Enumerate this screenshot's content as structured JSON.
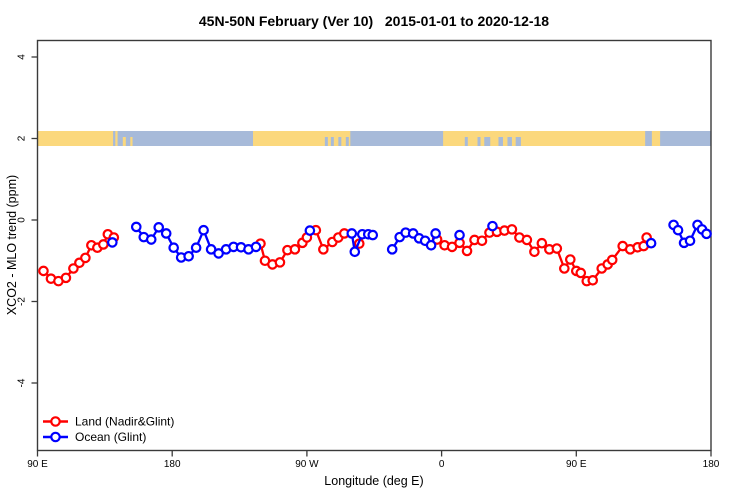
{
  "title": "45N-50N February (Ver 10)   2015-01-01 to 2020-12-18",
  "chart_data": {
    "type": "line",
    "title": "45N-50N February (Ver 10)   2015-01-01 to 2020-12-18",
    "xlabel": "Longitude (deg E)",
    "ylabel": "XCO2 - MLO trend (ppm)",
    "xlim": [
      90,
      540
    ],
    "ylim": [
      -5.6,
      4.4
    ],
    "grid": false,
    "legend_position": "bottom-left",
    "marker": "open-circle",
    "x_ticks": [
      {
        "value": 90,
        "label": "90 E"
      },
      {
        "value": 180,
        "label": "180"
      },
      {
        "value": 270,
        "label": "90 W"
      },
      {
        "value": 360,
        "label": "0"
      },
      {
        "value": 450,
        "label": "90 E"
      },
      {
        "value": 540,
        "label": "180"
      }
    ],
    "y_ticks": [
      {
        "value": -4,
        "label": "-4"
      },
      {
        "value": -2,
        "label": "-2"
      },
      {
        "value": 0,
        "label": "0"
      },
      {
        "value": 2,
        "label": "2"
      },
      {
        "value": 4,
        "label": "4"
      }
    ],
    "series": [
      {
        "name": "Land (Nadir&Glint)",
        "color": "#FF0000",
        "chains": [
          [
            [
              94,
              -1.25
            ],
            [
              99,
              -1.44
            ],
            [
              104,
              -1.5
            ],
            [
              109,
              -1.42
            ],
            [
              114,
              -1.19
            ],
            [
              118,
              -1.05
            ],
            [
              122,
              -0.93
            ],
            [
              126,
              -0.62
            ],
            [
              130,
              -0.68
            ],
            [
              134,
              -0.6
            ],
            [
              137,
              -0.35
            ],
            [
              141,
              -0.43
            ]
          ],
          [
            [
              239,
              -0.58
            ],
            [
              242,
              -1.0
            ],
            [
              247,
              -1.09
            ],
            [
              252,
              -1.04
            ],
            [
              257,
              -0.74
            ],
            [
              262,
              -0.72
            ],
            [
              267,
              -0.56
            ],
            [
              270,
              -0.43
            ],
            [
              276,
              -0.25
            ],
            [
              281,
              -0.72
            ],
            [
              287,
              -0.54
            ],
            [
              291,
              -0.43
            ],
            [
              295,
              -0.33
            ]
          ],
          [
            [
              305,
              -0.58
            ]
          ],
          [
            [
              357,
              -0.48
            ],
            [
              362,
              -0.62
            ],
            [
              367,
              -0.66
            ],
            [
              372,
              -0.56
            ],
            [
              377,
              -0.76
            ],
            [
              382,
              -0.49
            ],
            [
              387,
              -0.51
            ],
            [
              392,
              -0.31
            ],
            [
              397,
              -0.29
            ],
            [
              402,
              -0.26
            ],
            [
              407,
              -0.23
            ],
            [
              412,
              -0.43
            ],
            [
              417,
              -0.49
            ],
            [
              422,
              -0.78
            ],
            [
              427,
              -0.57
            ],
            [
              432,
              -0.72
            ],
            [
              437,
              -0.7
            ],
            [
              442,
              -1.19
            ],
            [
              446,
              -0.97
            ],
            [
              450,
              -1.25
            ],
            [
              453,
              -1.3
            ],
            [
              457,
              -1.5
            ],
            [
              461,
              -1.48
            ],
            [
              467,
              -1.19
            ],
            [
              471,
              -1.09
            ],
            [
              474,
              -0.98
            ],
            [
              481,
              -0.64
            ],
            [
              486,
              -0.72
            ],
            [
              491,
              -0.67
            ],
            [
              495,
              -0.64
            ],
            [
              497,
              -0.43
            ]
          ]
        ]
      },
      {
        "name": "Ocean (Glint)",
        "color": "#0000FF",
        "chains": [
          [
            [
              140,
              -0.55
            ]
          ],
          [
            [
              156,
              -0.17
            ],
            [
              161,
              -0.42
            ],
            [
              166,
              -0.48
            ],
            [
              171,
              -0.18
            ],
            [
              176,
              -0.33
            ],
            [
              181,
              -0.68
            ],
            [
              186,
              -0.92
            ],
            [
              191,
              -0.89
            ],
            [
              196,
              -0.68
            ],
            [
              201,
              -0.25
            ],
            [
              206,
              -0.72
            ],
            [
              211,
              -0.82
            ],
            [
              216,
              -0.72
            ],
            [
              221,
              -0.66
            ],
            [
              226,
              -0.67
            ],
            [
              231,
              -0.72
            ],
            [
              236,
              -0.66
            ]
          ],
          [
            [
              272,
              -0.26
            ]
          ],
          [
            [
              300,
              -0.33
            ],
            [
              302,
              -0.78
            ],
            [
              307,
              -0.35
            ],
            [
              311,
              -0.35
            ],
            [
              314,
              -0.37
            ]
          ],
          [
            [
              327,
              -0.72
            ],
            [
              332,
              -0.42
            ],
            [
              336,
              -0.31
            ],
            [
              341,
              -0.33
            ],
            [
              345,
              -0.45
            ],
            [
              349,
              -0.51
            ],
            [
              353,
              -0.62
            ],
            [
              356,
              -0.33
            ]
          ],
          [
            [
              372,
              -0.37
            ]
          ],
          [
            [
              394,
              -0.15
            ]
          ],
          [
            [
              500,
              -0.57
            ]
          ],
          [
            [
              515,
              -0.12
            ],
            [
              518,
              -0.25
            ],
            [
              522,
              -0.56
            ],
            [
              526,
              -0.51
            ],
            [
              531,
              -0.12
            ],
            [
              534,
              -0.23
            ],
            [
              537,
              -0.34
            ]
          ]
        ]
      }
    ],
    "map_band": {
      "y_value": 2,
      "land_color": "#FBD87D",
      "ocean_color": "#A7BAD9",
      "segments": [
        {
          "from": 90,
          "to": 540,
          "surface": "ocean"
        },
        {
          "from": 90,
          "to": 140.5,
          "surface": "land"
        },
        {
          "from": 142,
          "to": 143.5,
          "surface": "land"
        },
        {
          "from": 147,
          "to": 149,
          "surface": "land",
          "partial": true
        },
        {
          "from": 152,
          "to": 153.5,
          "surface": "land",
          "partial": true
        },
        {
          "from": 234,
          "to": 299,
          "surface": "land"
        },
        {
          "from": 282,
          "to": 284,
          "surface": "ocean",
          "partial": true
        },
        {
          "from": 286,
          "to": 288,
          "surface": "ocean",
          "partial": true
        },
        {
          "from": 291,
          "to": 293,
          "surface": "ocean",
          "partial": true
        },
        {
          "from": 296,
          "to": 298,
          "surface": "ocean",
          "partial": true
        },
        {
          "from": 361,
          "to": 496,
          "surface": "land"
        },
        {
          "from": 375.5,
          "to": 377.5,
          "surface": "ocean",
          "partial": true
        },
        {
          "from": 384,
          "to": 386,
          "surface": "ocean",
          "partial": true
        },
        {
          "from": 388.5,
          "to": 392.5,
          "surface": "ocean",
          "partial": true
        },
        {
          "from": 398,
          "to": 401,
          "surface": "ocean",
          "partial": true
        },
        {
          "from": 404,
          "to": 407,
          "surface": "ocean",
          "partial": true
        },
        {
          "from": 409.5,
          "to": 413,
          "surface": "ocean",
          "partial": true
        },
        {
          "from": 500.5,
          "to": 506,
          "surface": "land"
        }
      ]
    }
  }
}
